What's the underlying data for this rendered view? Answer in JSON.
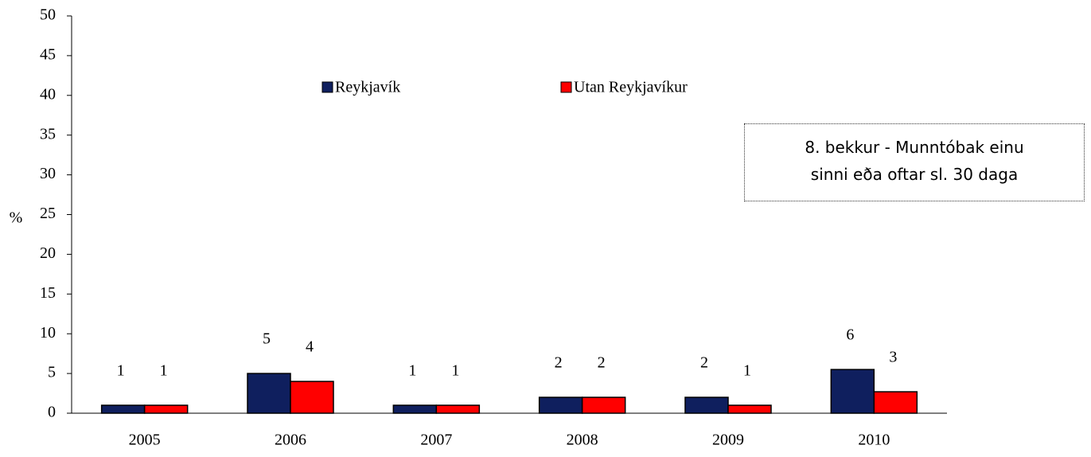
{
  "chart_data": {
    "type": "bar",
    "title": "8. bekkur - Munntóbak einu sinni eða oftar sl. 30 daga",
    "y_label": "%",
    "categories": [
      "2005",
      "2006",
      "2007",
      "2008",
      "2009",
      "2010"
    ],
    "series": [
      {
        "name": "Reykjavík",
        "color": "#0f1f5e",
        "values": [
          1,
          5,
          1,
          2,
          2,
          5.5
        ],
        "value_labels": [
          "1",
          "5",
          "1",
          "2",
          "2",
          "6"
        ]
      },
      {
        "name": "Utan Reykjavíkur",
        "color": "#ff0000",
        "values": [
          1,
          4,
          1,
          2,
          1,
          2.7
        ],
        "value_labels": [
          "1",
          "4",
          "1",
          "2",
          "1",
          "3"
        ]
      }
    ],
    "ylim": [
      0,
      50
    ],
    "yticks": [
      0,
      5,
      10,
      15,
      20,
      25,
      30,
      35,
      40,
      45,
      50
    ],
    "grid": false,
    "legend": "top"
  }
}
